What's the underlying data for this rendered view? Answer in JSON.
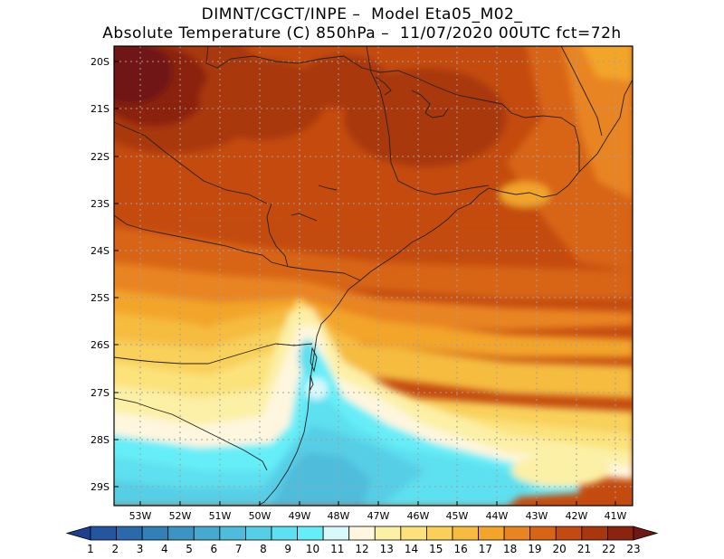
{
  "header": {
    "line1": "DIMNT/CGCT/INPE –  Model Eta05_M02_",
    "line2": "Absolute Temperature (C) 850hPa –  11/07/2020 00UTC fct=72h"
  },
  "map": {
    "lat_labels": [
      "20S",
      "21S",
      "22S",
      "23S",
      "24S",
      "25S",
      "26S",
      "27S",
      "28S",
      "29S"
    ],
    "lon_labels": [
      "53W",
      "52W",
      "51W",
      "50W",
      "49W",
      "48W",
      "47W",
      "46W",
      "45W",
      "44W",
      "43W",
      "42W",
      "41W"
    ],
    "lat_range": [
      -29.4,
      -19.8
    ],
    "lon_range": [
      -53.7,
      -40.4
    ]
  },
  "colorbar": {
    "labels": [
      "1",
      "2",
      "3",
      "4",
      "5",
      "6",
      "7",
      "8",
      "9",
      "10",
      "11",
      "12",
      "13",
      "14",
      "15",
      "16",
      "17",
      "18",
      "19",
      "20",
      "21",
      "22",
      "23"
    ],
    "colors": [
      "#1d3f8f",
      "#23569e",
      "#2a6aac",
      "#3180b8",
      "#3a95c4",
      "#45a9d0",
      "#4fbcdc",
      "#56cee6",
      "#5de0ef",
      "#66eef8",
      "#d9f8fb",
      "#fef6de",
      "#fcf0a6",
      "#fbe27a",
      "#f8d05a",
      "#f5bc3f",
      "#f3a52b",
      "#e98420",
      "#d86515",
      "#c44b0f",
      "#a9370d",
      "#8a2410",
      "#701813"
    ]
  }
}
